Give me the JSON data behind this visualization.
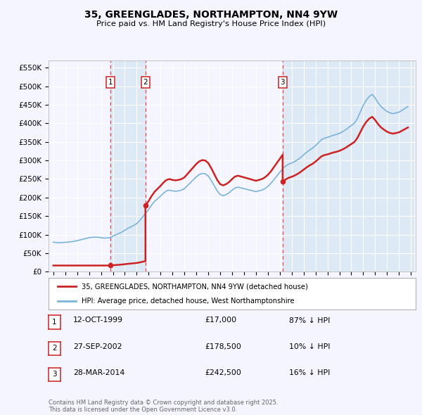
{
  "title": "35, GREENGLADES, NORTHAMPTON, NN4 9YW",
  "subtitle": "Price paid vs. HM Land Registry's House Price Index (HPI)",
  "ylim": [
    0,
    570000
  ],
  "yticks": [
    0,
    50000,
    100000,
    150000,
    200000,
    250000,
    300000,
    350000,
    400000,
    450000,
    500000,
    550000
  ],
  "ytick_labels": [
    "£0",
    "£50K",
    "£100K",
    "£150K",
    "£200K",
    "£250K",
    "£300K",
    "£350K",
    "£400K",
    "£450K",
    "£500K",
    "£550K"
  ],
  "hpi_color": "#7ab4d8",
  "price_color": "#cc2222",
  "vline_color": "#ee3333",
  "box_edge_color": "#cc2222",
  "background_color": "#f5f5ff",
  "plot_bg_color": "#f5f5ff",
  "legend_line1": "35, GREENGLADES, NORTHAMPTON, NN4 9YW (detached house)",
  "legend_line2": "HPI: Average price, detached house, West Northamptonshire",
  "footnote": "Contains HM Land Registry data © Crown copyright and database right 2025.\nThis data is licensed under the Open Government Licence v3.0.",
  "transactions": [
    {
      "num": 1,
      "date": "12-OCT-1999",
      "price": 17000,
      "pct": "87% ↓ HPI",
      "year": 1999.78
    },
    {
      "num": 2,
      "date": "27-SEP-2002",
      "price": 178500,
      "pct": "10% ↓ HPI",
      "year": 2002.73
    },
    {
      "num": 3,
      "date": "28-MAR-2014",
      "price": 242500,
      "pct": "16% ↓ HPI",
      "year": 2014.24
    }
  ],
  "hpi_years": [
    1995.0,
    1995.25,
    1995.5,
    1995.75,
    1996.0,
    1996.25,
    1996.5,
    1996.75,
    1997.0,
    1997.25,
    1997.5,
    1997.75,
    1998.0,
    1998.25,
    1998.5,
    1998.75,
    1999.0,
    1999.25,
    1999.5,
    1999.75,
    2000.0,
    2000.25,
    2000.5,
    2000.75,
    2001.0,
    2001.25,
    2001.5,
    2001.75,
    2002.0,
    2002.25,
    2002.5,
    2002.75,
    2003.0,
    2003.25,
    2003.5,
    2003.75,
    2004.0,
    2004.25,
    2004.5,
    2004.75,
    2005.0,
    2005.25,
    2005.5,
    2005.75,
    2006.0,
    2006.25,
    2006.5,
    2006.75,
    2007.0,
    2007.25,
    2007.5,
    2007.75,
    2008.0,
    2008.25,
    2008.5,
    2008.75,
    2009.0,
    2009.25,
    2009.5,
    2009.75,
    2010.0,
    2010.25,
    2010.5,
    2010.75,
    2011.0,
    2011.25,
    2011.5,
    2011.75,
    2012.0,
    2012.25,
    2012.5,
    2012.75,
    2013.0,
    2013.25,
    2013.5,
    2013.75,
    2014.0,
    2014.25,
    2014.5,
    2014.75,
    2015.0,
    2015.25,
    2015.5,
    2015.75,
    2016.0,
    2016.25,
    2016.5,
    2016.75,
    2017.0,
    2017.25,
    2017.5,
    2017.75,
    2018.0,
    2018.25,
    2018.5,
    2018.75,
    2019.0,
    2019.25,
    2019.5,
    2019.75,
    2020.0,
    2020.25,
    2020.5,
    2020.75,
    2021.0,
    2021.25,
    2021.5,
    2021.75,
    2022.0,
    2022.25,
    2022.5,
    2022.75,
    2023.0,
    2023.25,
    2023.5,
    2023.75,
    2024.0,
    2024.25,
    2024.5,
    2024.75
  ],
  "hpi_values": [
    80000,
    79000,
    78500,
    79000,
    79500,
    80000,
    81000,
    82000,
    84000,
    86000,
    88000,
    90000,
    92000,
    93000,
    93500,
    93000,
    92000,
    91000,
    91500,
    92000,
    96000,
    100000,
    103000,
    107000,
    112000,
    117000,
    121000,
    125000,
    130000,
    138000,
    148000,
    158000,
    168000,
    180000,
    190000,
    197000,
    204000,
    212000,
    218000,
    220000,
    218000,
    217000,
    218000,
    220000,
    224000,
    232000,
    240000,
    248000,
    256000,
    262000,
    265000,
    264000,
    258000,
    246000,
    232000,
    218000,
    208000,
    205000,
    208000,
    213000,
    220000,
    226000,
    228000,
    226000,
    224000,
    222000,
    220000,
    218000,
    216000,
    218000,
    220000,
    224000,
    230000,
    238000,
    248000,
    258000,
    268000,
    278000,
    285000,
    290000,
    293000,
    297000,
    302000,
    308000,
    315000,
    322000,
    328000,
    333000,
    340000,
    348000,
    356000,
    360000,
    362000,
    365000,
    368000,
    370000,
    373000,
    377000,
    382000,
    388000,
    394000,
    400000,
    412000,
    430000,
    448000,
    462000,
    472000,
    478000,
    468000,
    455000,
    445000,
    438000,
    432000,
    428000,
    426000,
    428000,
    430000,
    435000,
    440000,
    445000
  ]
}
